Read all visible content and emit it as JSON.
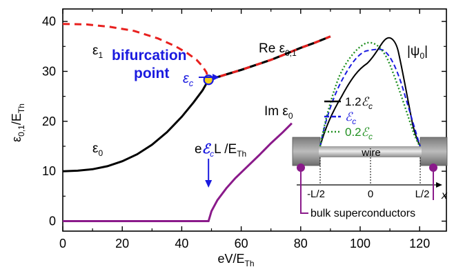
{
  "chart_data": {
    "type": "line",
    "xlim": [
      0,
      129
    ],
    "ylim": [
      -2,
      42.5
    ],
    "x_ticks": [
      0,
      20,
      40,
      60,
      80,
      100,
      120
    ],
    "y_ticks": [
      0,
      10,
      20,
      30,
      40
    ],
    "x_tick_labels": [
      "0",
      "20",
      "40",
      "60",
      "80",
      "100",
      "120"
    ],
    "y_tick_labels": [
      "0",
      "10",
      "20",
      "30",
      "40"
    ],
    "xlabel": {
      "main": "eV/E",
      "sub": "Th"
    },
    "ylabel": {
      "main": "ε",
      "sub0": "0,1",
      "mid": "/E",
      "sub": "Th"
    },
    "series": [
      {
        "name": "ε0",
        "style": "solid",
        "color": "#000000",
        "points": [
          [
            0,
            10
          ],
          [
            5,
            10.1
          ],
          [
            10,
            10.4
          ],
          [
            15,
            11
          ],
          [
            20,
            12
          ],
          [
            25,
            13.4
          ],
          [
            30,
            15.3
          ],
          [
            35,
            17.8
          ],
          [
            40,
            20.9
          ],
          [
            44,
            23.8
          ],
          [
            47,
            26.2
          ],
          [
            49,
            28.3
          ]
        ]
      },
      {
        "name": "ε1",
        "style": "dashed",
        "color": "#e8201e",
        "points": [
          [
            0,
            39.5
          ],
          [
            8,
            39.4
          ],
          [
            16,
            38.9
          ],
          [
            24,
            38.1
          ],
          [
            32,
            36.6
          ],
          [
            38,
            35
          ],
          [
            42,
            33.6
          ],
          [
            45,
            32.3
          ],
          [
            47,
            31
          ],
          [
            48.3,
            29.8
          ],
          [
            49,
            28.3
          ]
        ]
      },
      {
        "name": "Re ε0,1",
        "style": "black-red-dashed",
        "color": "#000000",
        "points": [
          [
            49,
            28.3
          ],
          [
            55,
            29.4
          ],
          [
            60,
            30.3
          ],
          [
            65,
            31.3
          ],
          [
            70,
            32.3
          ],
          [
            75,
            33.5
          ],
          [
            80,
            34.7
          ],
          [
            85,
            35.8
          ],
          [
            90,
            37
          ]
        ]
      },
      {
        "name": "Im ε0",
        "style": "solid",
        "color": "#8a1a8a",
        "points": [
          [
            0,
            0
          ],
          [
            49,
            0
          ],
          [
            50,
            2
          ],
          [
            52,
            4.2
          ],
          [
            55,
            6.6
          ],
          [
            58,
            8.6
          ],
          [
            62,
            10.9
          ],
          [
            66,
            13.2
          ],
          [
            70,
            15.6
          ],
          [
            74,
            17.8
          ],
          [
            77,
            19.6
          ]
        ]
      }
    ],
    "bifurcation_point": {
      "x": 49,
      "y": 28.3
    },
    "arrow_x": 49
  },
  "annotations": {
    "eps1": {
      "main": "ε",
      "sub": "1"
    },
    "eps0": {
      "main": "ε",
      "sub": "0"
    },
    "bifurcation_line1": "bifurcation",
    "bifurcation_line2": "point",
    "epsc": {
      "main": "ε",
      "sub": "c"
    },
    "re_label": {
      "pre": "Re ",
      "main": "ε",
      "sub": "0,1"
    },
    "im_label": {
      "pre": "Im ",
      "main": "ε",
      "sub": "0"
    },
    "crit_label": {
      "pre": "e",
      "mid": "L /E",
      "sub": "Th"
    },
    "psi_label": "|ψ",
    "psi_sub": "0",
    "psi_close": "|"
  },
  "inset": {
    "legend": [
      {
        "value": "1.2",
        "sub": "c",
        "color": "#000000",
        "style": "solid"
      },
      {
        "value": "",
        "sub": "c",
        "color": "#1a1adf",
        "style": "dashed"
      },
      {
        "value": "0.2",
        "sub": "c",
        "color": "#1f8f1f",
        "style": "dotted"
      }
    ],
    "wire_label": "wire",
    "tick_left": "-L/2",
    "tick_mid": "0",
    "tick_right": "L/2",
    "axis_label": "x",
    "bulk_label": "bulk superconductors"
  }
}
